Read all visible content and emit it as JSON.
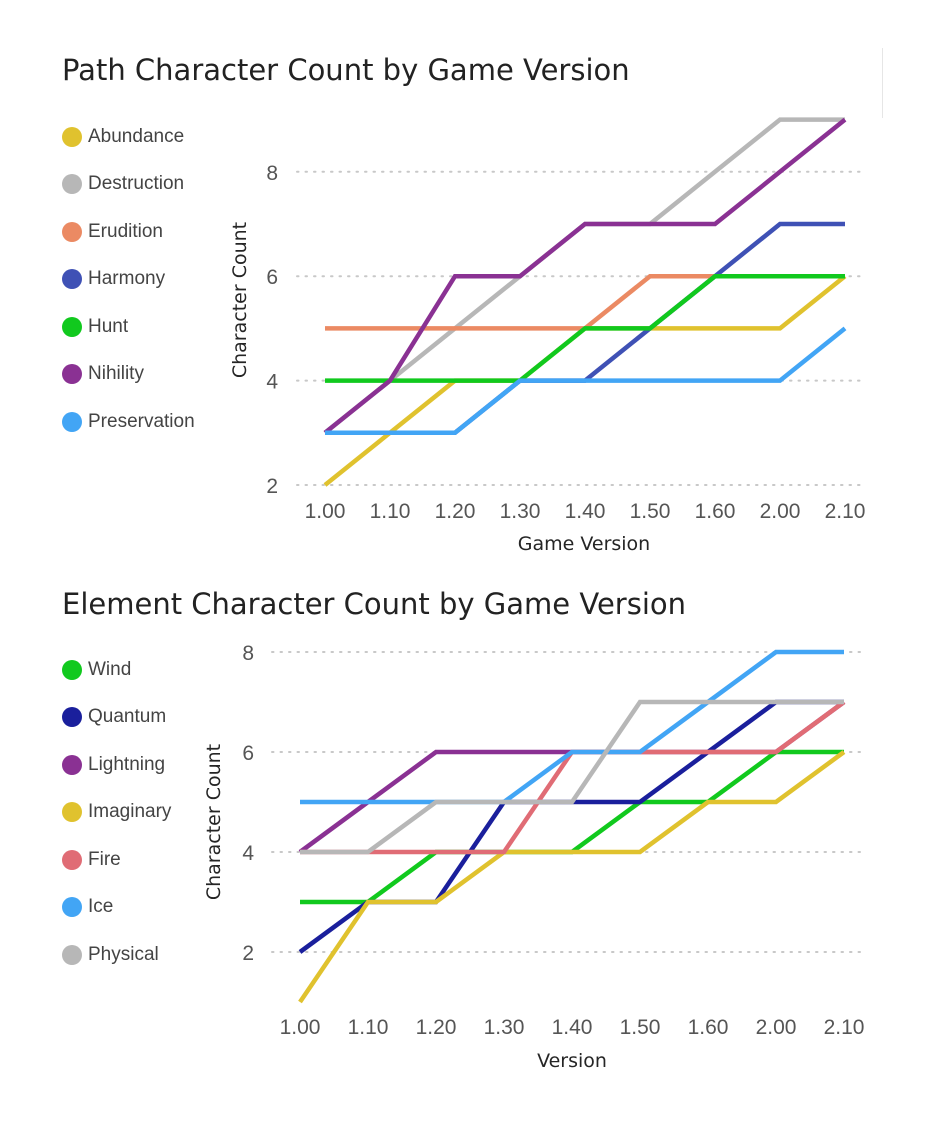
{
  "chart_data": [
    {
      "type": "line",
      "title": "Path Character Count by Game Version",
      "xlabel": "Game Version",
      "ylabel": "Character Count",
      "x": [
        "1.00",
        "1.10",
        "1.20",
        "1.30",
        "1.40",
        "1.50",
        "1.60",
        "2.00",
        "2.10"
      ],
      "ylim": [
        2,
        9
      ],
      "yticks": [
        2,
        4,
        6,
        8
      ],
      "grid": "horizontal dotted",
      "legend_position": "left",
      "series": [
        {
          "name": "Abundance",
          "color": "#E0C22E",
          "values": [
            2,
            3,
            4,
            4,
            5,
            5,
            5,
            5,
            6
          ]
        },
        {
          "name": "Destruction",
          "color": "#B7B7B7",
          "values": [
            3,
            4,
            5,
            6,
            7,
            7,
            8,
            9,
            9
          ]
        },
        {
          "name": "Erudition",
          "color": "#EB8A63",
          "values": [
            5,
            5,
            5,
            5,
            5,
            6,
            6,
            6,
            6
          ]
        },
        {
          "name": "Harmony",
          "color": "#3F51B5",
          "values": [
            3,
            3,
            3,
            4,
            4,
            5,
            6,
            7,
            7
          ]
        },
        {
          "name": "Hunt",
          "color": "#11C91E",
          "values": [
            4,
            4,
            4,
            4,
            5,
            5,
            6,
            6,
            6
          ]
        },
        {
          "name": "Nihility",
          "color": "#8A3193",
          "values": [
            3,
            4,
            6,
            6,
            7,
            7,
            7,
            8,
            9
          ]
        },
        {
          "name": "Preservation",
          "color": "#42A5F5",
          "values": [
            3,
            3,
            3,
            4,
            4,
            4,
            4,
            4,
            5
          ]
        }
      ]
    },
    {
      "type": "line",
      "title": "Element Character Count by Game Version",
      "xlabel": "Version",
      "ylabel": "Character Count",
      "x": [
        "1.00",
        "1.10",
        "1.20",
        "1.30",
        "1.40",
        "1.50",
        "1.60",
        "2.00",
        "2.10"
      ],
      "ylim": [
        1,
        8
      ],
      "yticks": [
        2,
        4,
        6,
        8
      ],
      "grid": "horizontal dotted",
      "legend_position": "left",
      "series": [
        {
          "name": "Wind",
          "color": "#11C91E",
          "values": [
            3,
            3,
            4,
            4,
            4,
            5,
            5,
            6,
            6
          ]
        },
        {
          "name": "Quantum",
          "color": "#1A1F9C",
          "values": [
            2,
            3,
            3,
            5,
            5,
            5,
            6,
            7,
            7
          ]
        },
        {
          "name": "Lightning",
          "color": "#8A3193",
          "values": [
            4,
            5,
            6,
            6,
            6,
            6,
            6,
            6,
            7
          ]
        },
        {
          "name": "Imaginary",
          "color": "#E0C22E",
          "values": [
            1,
            3,
            3,
            4,
            4,
            4,
            5,
            5,
            6
          ]
        },
        {
          "name": "Fire",
          "color": "#E06C75",
          "values": [
            4,
            4,
            4,
            4,
            6,
            6,
            6,
            6,
            7
          ]
        },
        {
          "name": "Ice",
          "color": "#42A5F5",
          "values": [
            5,
            5,
            5,
            5,
            6,
            6,
            7,
            8,
            8
          ]
        },
        {
          "name": "Physical",
          "color": "#B7B7B7",
          "values": [
            4,
            4,
            5,
            5,
            5,
            7,
            7,
            7,
            7
          ]
        }
      ]
    }
  ]
}
